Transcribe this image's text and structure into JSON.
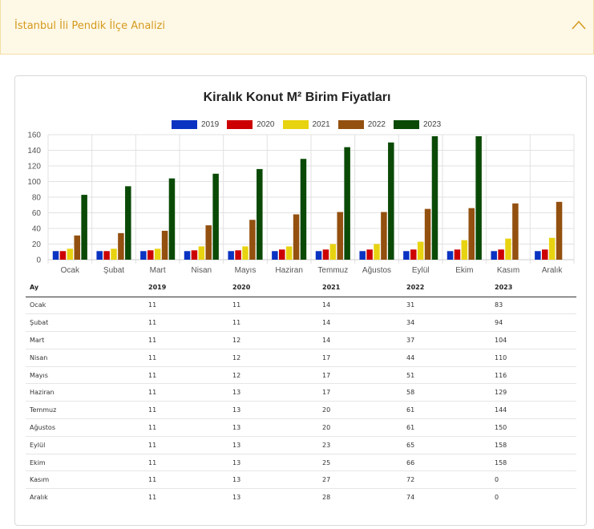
{
  "accordion": {
    "title": "İstanbul İli Pendik İlçe Analizi"
  },
  "chart_data": {
    "type": "bar",
    "title": "Kiralık Konut M² Birim Fiyatları",
    "categories": [
      "Ocak",
      "Şubat",
      "Mart",
      "Nisan",
      "Mayıs",
      "Haziran",
      "Temmuz",
      "Ağustos",
      "Eylül",
      "Ekim",
      "Kasım",
      "Aralık"
    ],
    "series": [
      {
        "name": "2019",
        "color": "#0a33c2",
        "values": [
          11,
          11,
          11,
          11,
          11,
          11,
          11,
          11,
          11,
          11,
          11,
          11
        ]
      },
      {
        "name": "2020",
        "color": "#cc0000",
        "values": [
          11,
          11,
          12,
          12,
          12,
          13,
          13,
          13,
          13,
          13,
          13,
          13
        ]
      },
      {
        "name": "2021",
        "color": "#e8d310",
        "values": [
          14,
          14,
          14,
          17,
          17,
          17,
          20,
          20,
          23,
          25,
          27,
          28
        ]
      },
      {
        "name": "2022",
        "color": "#93500f",
        "values": [
          31,
          34,
          37,
          44,
          51,
          58,
          61,
          61,
          65,
          66,
          72,
          74
        ]
      },
      {
        "name": "2023",
        "color": "#0a4a06",
        "values": [
          83,
          94,
          104,
          110,
          116,
          129,
          144,
          150,
          158,
          158,
          0,
          0
        ]
      }
    ],
    "yticks": [
      "0",
      "20",
      "40",
      "60",
      "80",
      "100",
      "120",
      "140",
      "160"
    ],
    "ylim": [
      0,
      160
    ],
    "grid": true,
    "legend_position": "top"
  },
  "table": {
    "headers": [
      "Ay",
      "2019",
      "2020",
      "2021",
      "2022",
      "2023"
    ],
    "rows": [
      [
        "Ocak",
        "11",
        "11",
        "14",
        "31",
        "83"
      ],
      [
        "Şubat",
        "11",
        "11",
        "14",
        "34",
        "94"
      ],
      [
        "Mart",
        "11",
        "12",
        "14",
        "37",
        "104"
      ],
      [
        "Nisan",
        "11",
        "12",
        "17",
        "44",
        "110"
      ],
      [
        "Mayıs",
        "11",
        "12",
        "17",
        "51",
        "116"
      ],
      [
        "Haziran",
        "11",
        "13",
        "17",
        "58",
        "129"
      ],
      [
        "Temmuz",
        "11",
        "13",
        "20",
        "61",
        "144"
      ],
      [
        "Ağustos",
        "11",
        "13",
        "20",
        "61",
        "150"
      ],
      [
        "Eylül",
        "11",
        "13",
        "23",
        "65",
        "158"
      ],
      [
        "Ekim",
        "11",
        "13",
        "25",
        "66",
        "158"
      ],
      [
        "Kasım",
        "11",
        "13",
        "27",
        "72",
        "0"
      ],
      [
        "Aralık",
        "11",
        "13",
        "28",
        "74",
        "0"
      ]
    ]
  }
}
